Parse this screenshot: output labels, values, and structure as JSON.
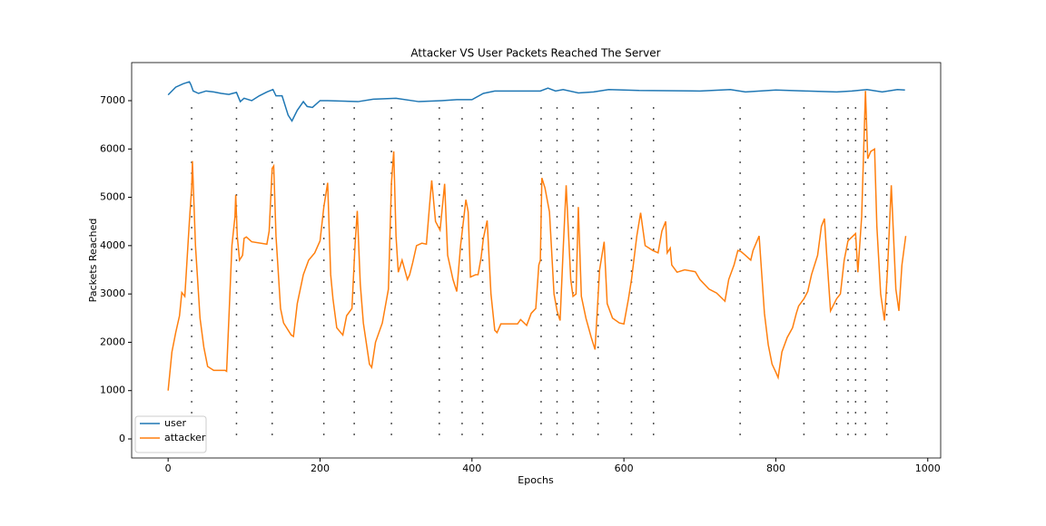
{
  "chart_data": {
    "type": "line",
    "title": "Attacker VS User Packets Reached The Server",
    "xlabel": "Epochs",
    "ylabel": "Packets Reached",
    "xlim": [
      -48,
      1017
    ],
    "ylim": [
      -394,
      7788
    ],
    "xticks": [
      0,
      200,
      400,
      600,
      800,
      1000
    ],
    "yticks": [
      0,
      1000,
      2000,
      3000,
      4000,
      5000,
      6000,
      7000
    ],
    "grid": false,
    "legend": "lower left",
    "vlines": {
      "color": "#555555",
      "x": [
        31,
        90,
        137,
        205,
        245,
        294,
        357,
        387,
        414,
        491,
        512,
        533,
        566,
        610,
        639,
        753,
        837,
        880,
        895,
        905,
        918,
        946
      ]
    },
    "series": [
      {
        "name": "user",
        "color": "#1f77b4",
        "x": [
          0,
          10,
          20,
          28,
          30,
          33,
          40,
          50,
          60,
          70,
          80,
          90,
          95,
          100,
          110,
          120,
          130,
          138,
          142,
          150,
          158,
          163,
          170,
          178,
          183,
          190,
          200,
          210,
          250,
          270,
          300,
          330,
          360,
          380,
          400,
          415,
          430,
          470,
          490,
          500,
          510,
          520,
          540,
          560,
          580,
          620,
          700,
          740,
          760,
          800,
          840,
          880,
          900,
          920,
          940,
          960,
          970
        ],
        "values": [
          7120,
          7280,
          7350,
          7390,
          7330,
          7200,
          7150,
          7200,
          7180,
          7150,
          7130,
          7170,
          6980,
          7050,
          7000,
          7100,
          7180,
          7230,
          7100,
          7100,
          6700,
          6580,
          6800,
          6980,
          6880,
          6860,
          7000,
          7000,
          6980,
          7030,
          7050,
          6980,
          7000,
          7020,
          7020,
          7150,
          7200,
          7200,
          7200,
          7260,
          7200,
          7230,
          7160,
          7180,
          7230,
          7210,
          7200,
          7230,
          7180,
          7220,
          7200,
          7180,
          7200,
          7230,
          7180,
          7230,
          7220
        ]
      },
      {
        "name": "attacker",
        "color": "#ff7f0e",
        "x": [
          0,
          5,
          10,
          15,
          18,
          22,
          28,
          31,
          32,
          36,
          42,
          47,
          52,
          60,
          75,
          77,
          80,
          84,
          88,
          89,
          91,
          94,
          98,
          100,
          103,
          110,
          130,
          133,
          137,
          139,
          142,
          148,
          152,
          162,
          165,
          170,
          178,
          185,
          193,
          200,
          205,
          210,
          214,
          217,
          222,
          230,
          235,
          242,
          246,
          249,
          253,
          257,
          265,
          268,
          273,
          282,
          290,
          294,
          297,
          300,
          303,
          308,
          315,
          318,
          322,
          327,
          334,
          340,
          344,
          347,
          352,
          358,
          364,
          368,
          375,
          380,
          385,
          392,
          395,
          398,
          405,
          408,
          412,
          415,
          420,
          425,
          430,
          433,
          438,
          450,
          460,
          464,
          472,
          478,
          484,
          488,
          490,
          492,
          496,
          502,
          508,
          512,
          516,
          520,
          524,
          530,
          533,
          537,
          540,
          544,
          550,
          557,
          562,
          568,
          574,
          578,
          585,
          594,
          600,
          606,
          610,
          617,
          622,
          628,
          638,
          645,
          650,
          655,
          657,
          661,
          663,
          670,
          680,
          694,
          700,
          712,
          722,
          733,
          738,
          745,
          750,
          754,
          760,
          767,
          770,
          778,
          785,
          790,
          795,
          800,
          803,
          808,
          815,
          822,
          827,
          830,
          837,
          842,
          847,
          855,
          860,
          864,
          867,
          872,
          880,
          885,
          890,
          895,
          905,
          908,
          913,
          918,
          921,
          925,
          930,
          933,
          938,
          943,
          947,
          952,
          958,
          962,
          966,
          971
        ],
        "values": [
          1000,
          1800,
          2200,
          2550,
          3030,
          2950,
          4500,
          5200,
          5750,
          4000,
          2500,
          1900,
          1500,
          1420,
          1420,
          1400,
          2500,
          4000,
          4600,
          5050,
          4200,
          3700,
          3800,
          4150,
          4180,
          4080,
          4030,
          4300,
          5600,
          5650,
          4200,
          2700,
          2400,
          2150,
          2120,
          2800,
          3400,
          3700,
          3850,
          4100,
          4800,
          5300,
          3400,
          2900,
          2300,
          2150,
          2550,
          2700,
          4000,
          4720,
          3200,
          2400,
          1550,
          1480,
          2000,
          2400,
          3100,
          5300,
          5950,
          4200,
          3450,
          3700,
          3300,
          3400,
          3650,
          4000,
          4050,
          4030,
          4800,
          5350,
          4500,
          4320,
          5280,
          3800,
          3300,
          3050,
          4000,
          4950,
          4700,
          3350,
          3400,
          3400,
          3750,
          4150,
          4520,
          3000,
          2250,
          2200,
          2380,
          2380,
          2380,
          2470,
          2350,
          2600,
          2700,
          3600,
          3700,
          5400,
          5200,
          4700,
          3000,
          2650,
          2450,
          3900,
          5250,
          3300,
          2950,
          3000,
          4800,
          2950,
          2500,
          2100,
          1850,
          3500,
          4080,
          2800,
          2500,
          2400,
          2380,
          2900,
          3300,
          4200,
          4680,
          4000,
          3900,
          3850,
          4300,
          4500,
          3850,
          3950,
          3600,
          3450,
          3500,
          3460,
          3300,
          3100,
          3020,
          2850,
          3300,
          3600,
          3900,
          3880,
          3800,
          3700,
          3900,
          4200,
          2600,
          1950,
          1550,
          1380,
          1270,
          1800,
          2100,
          2300,
          2600,
          2750,
          2900,
          3050,
          3400,
          3800,
          4400,
          4560,
          3800,
          2650,
          2900,
          3000,
          3700,
          4100,
          4250,
          3450,
          4600,
          7200,
          5800,
          5950,
          6000,
          4400,
          3000,
          2450,
          3500,
          5250,
          3100,
          2650,
          3600,
          4200
        ]
      }
    ]
  }
}
